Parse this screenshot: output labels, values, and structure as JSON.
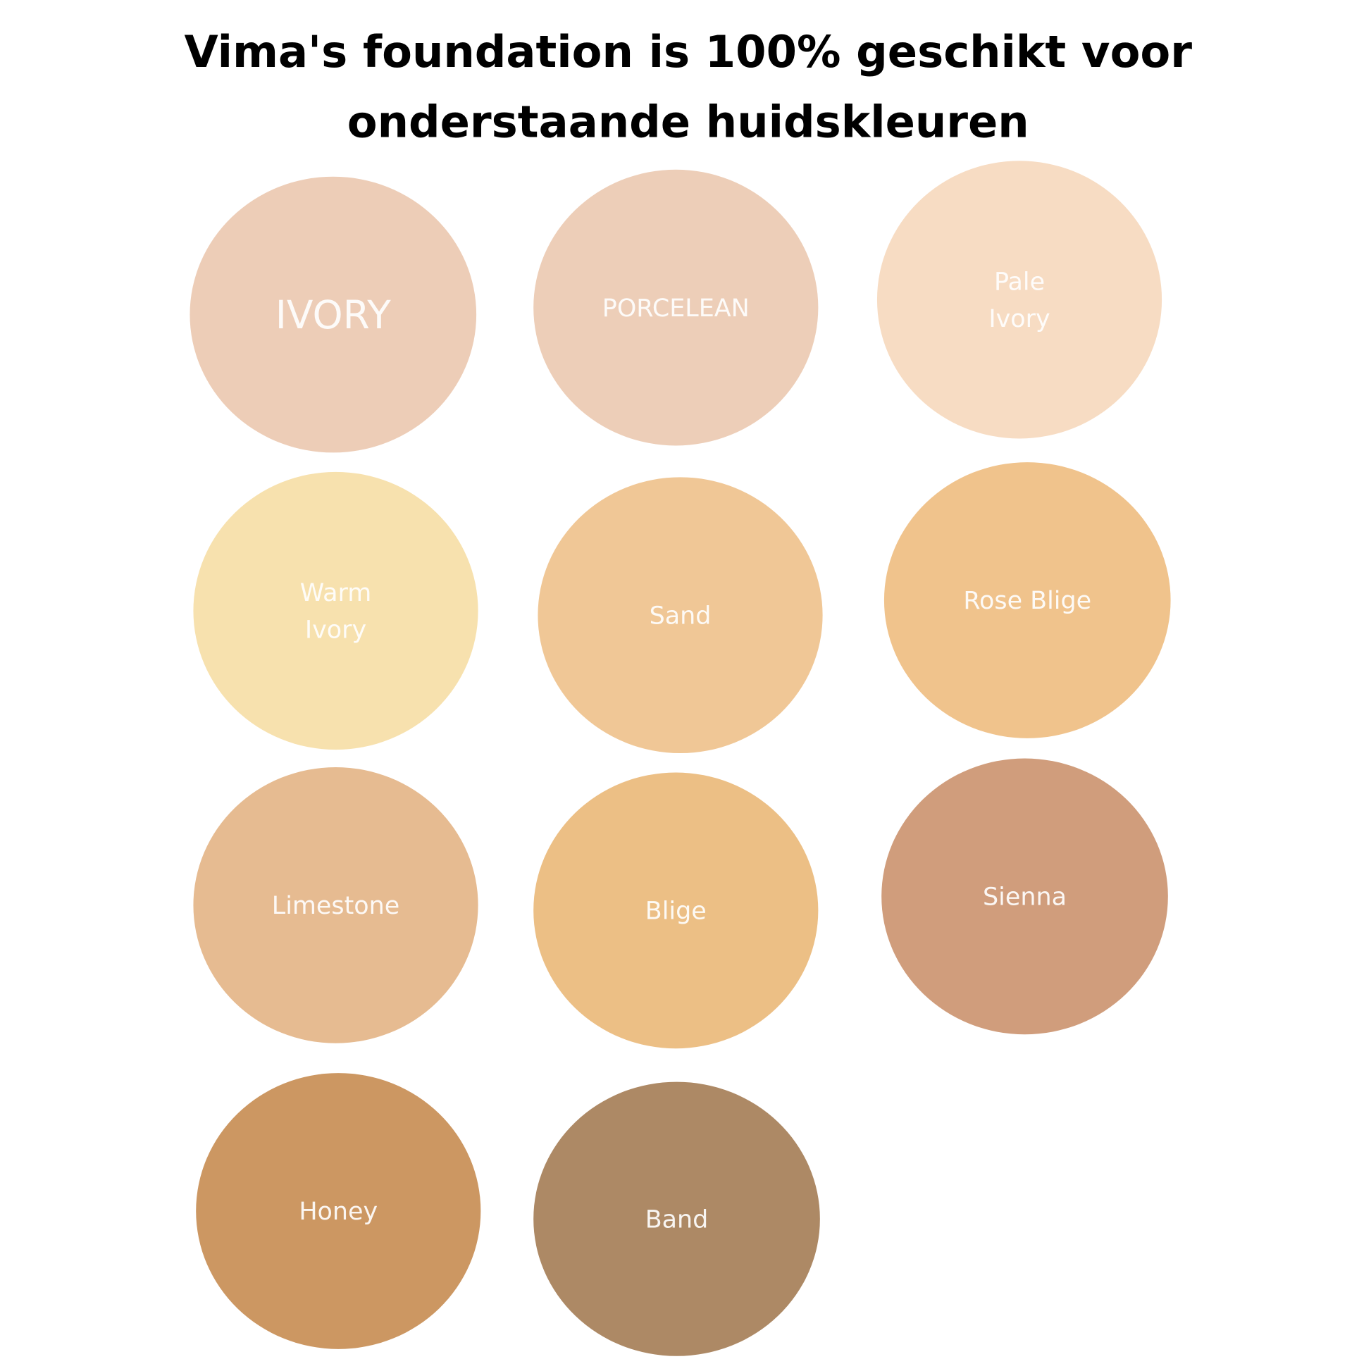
{
  "title": {
    "line1": "Vima's foundation is 100% geschikt voor",
    "line2": "onderstaande huidskleuren"
  },
  "swatches": [
    {
      "lines": [
        "IVORY"
      ],
      "color": "#EDCDB7"
    },
    {
      "lines": [
        "PORCELEAN"
      ],
      "color": "#EDCEB8"
    },
    {
      "lines": [
        "Pale",
        "Ivory"
      ],
      "color": "#F7DCC3"
    },
    {
      "lines": [
        "Warm",
        "Ivory"
      ],
      "color": "#F7E1AE"
    },
    {
      "lines": [
        "Sand"
      ],
      "color": "#F0C796"
    },
    {
      "lines": [
        "Rose Blige"
      ],
      "color": "#F0C38C"
    },
    {
      "lines": [
        "Limestone"
      ],
      "color": "#E6BB91"
    },
    {
      "lines": [
        "Blige"
      ],
      "color": "#ECBF85"
    },
    {
      "lines": [
        "Sienna"
      ],
      "color": "#D09D7C"
    },
    {
      "lines": [
        "Honey"
      ],
      "color": "#CC9762"
    },
    {
      "lines": [
        "Band"
      ],
      "color": "#AD8965"
    }
  ]
}
